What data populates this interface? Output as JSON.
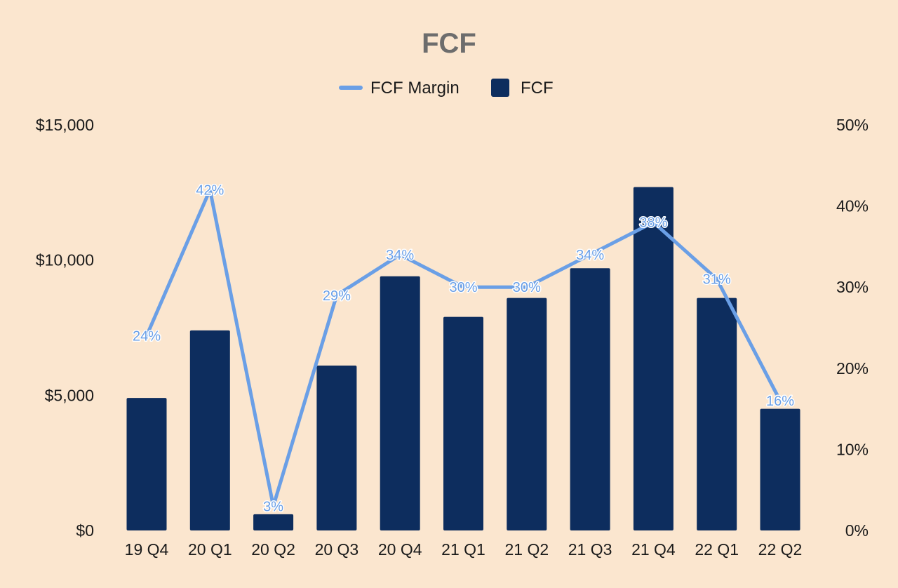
{
  "chart_data": {
    "type": "bar",
    "title": "FCF",
    "categories": [
      "19 Q4",
      "20 Q1",
      "20 Q2",
      "20 Q3",
      "20 Q4",
      "21 Q1",
      "21 Q2",
      "21 Q3",
      "21 Q4",
      "22 Q1",
      "22 Q2"
    ],
    "series": [
      {
        "name": "FCF",
        "type": "bar",
        "axis": "left",
        "color": "#0d2d5e",
        "values": [
          4900,
          7400,
          600,
          6100,
          9400,
          7900,
          8600,
          9700,
          12700,
          8600,
          4500
        ]
      },
      {
        "name": "FCF Margin",
        "type": "line",
        "axis": "right",
        "color": "#6a9fe6",
        "values": [
          24,
          42,
          3,
          29,
          34,
          30,
          30,
          34,
          38,
          31,
          16
        ],
        "labels": [
          "24%",
          "42%",
          "3%",
          "29%",
          "34%",
          "30%",
          "30%",
          "34%",
          "38%",
          "31%",
          "16%"
        ]
      }
    ],
    "y_left": {
      "min": 0,
      "max": 15000,
      "ticks": [
        0,
        5000,
        10000,
        15000
      ],
      "tick_labels": [
        "$0",
        "$5,000",
        "$10,000",
        "$15,000"
      ]
    },
    "y_right": {
      "min": 0,
      "max": 50,
      "ticks": [
        0,
        10,
        20,
        30,
        40,
        50
      ],
      "tick_labels": [
        "0%",
        "10%",
        "20%",
        "30%",
        "40%",
        "50%"
      ]
    },
    "legend": {
      "position": "top-center",
      "entries": [
        "FCF Margin",
        "FCF"
      ]
    },
    "grid": false,
    "xlabel": "",
    "ylabel": ""
  }
}
